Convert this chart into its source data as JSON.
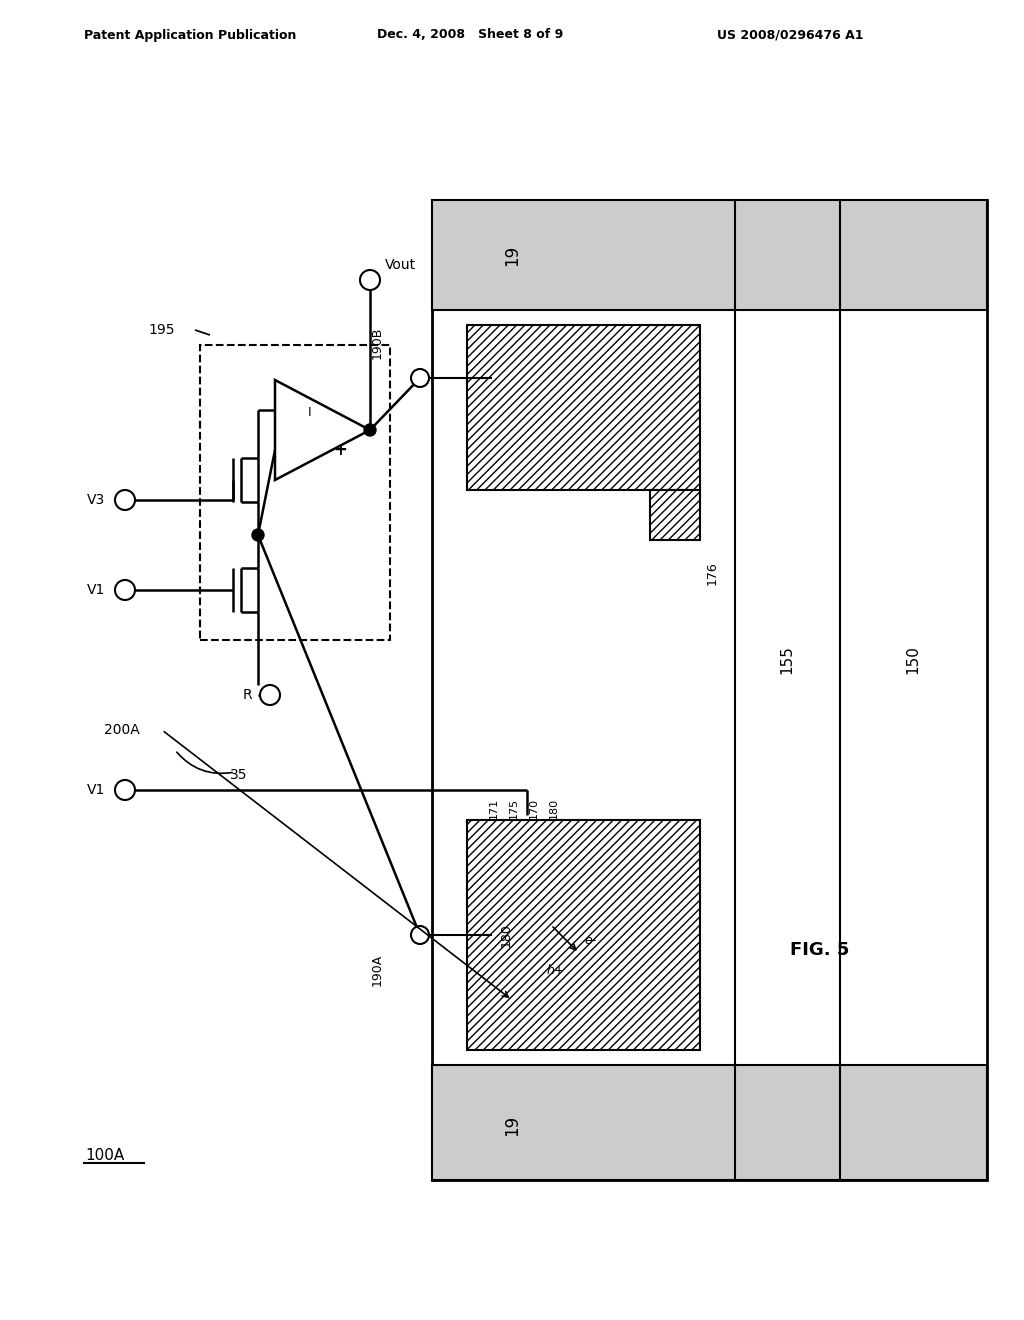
{
  "header_left": "Patent Application Publication",
  "header_center": "Dec. 4, 2008   Sheet 8 of 9",
  "header_right": "US 2008/0296476 A1",
  "fig_label": "FIG. 5",
  "background": "#ffffff",
  "line_color": "#000000",
  "note_100A": "100A",
  "label_195": "195",
  "label_190A": "190A",
  "label_190B": "190B",
  "label_176": "176",
  "label_171": "171",
  "label_175": "175",
  "label_170": "170",
  "label_180": "180",
  "label_155": "155",
  "label_150": "150",
  "label_19": "19",
  "label_Vout": "Vout",
  "label_V3": "V3",
  "label_V1": "V1",
  "label_R": "R",
  "label_200A": "200A",
  "label_35": "35",
  "label_eminus": "e-",
  "label_hplus": "h+"
}
